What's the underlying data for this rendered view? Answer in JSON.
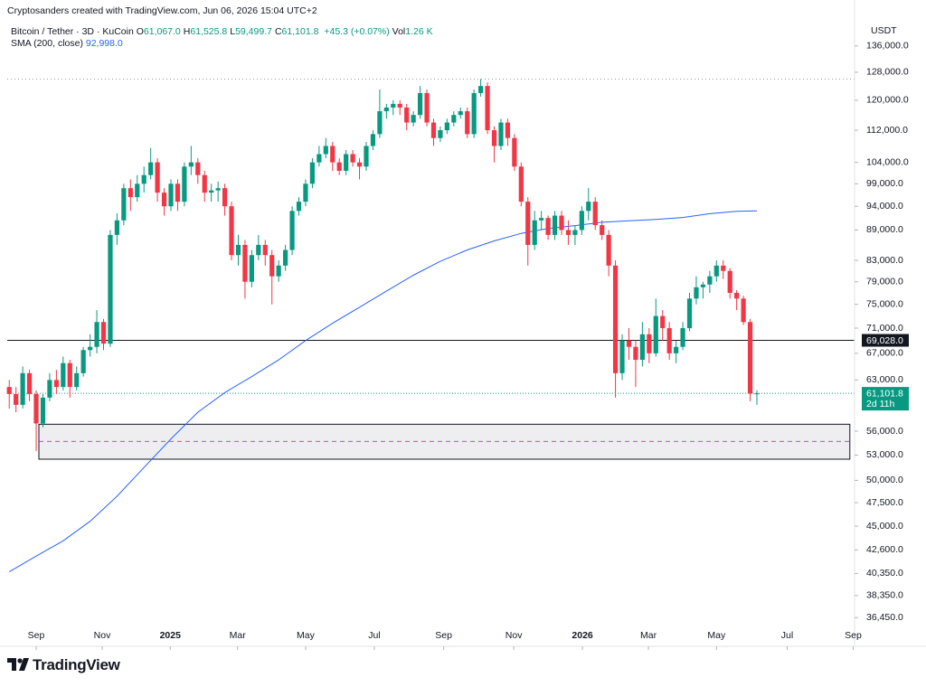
{
  "chart_data": {
    "type": "candlestick",
    "log_scale": true,
    "header": "Cryptosanders created with TradingView.com, Jun 06, 2026 15:04 UTC+2",
    "symbol": "Bitcoin / Tether · 3D · KuCoin",
    "fields": [
      {
        "key": "O",
        "value": "61,067.0"
      },
      {
        "key": "H",
        "value": "61,525.8"
      },
      {
        "key": "L",
        "value": "59,499.7"
      },
      {
        "key": "C",
        "value": "61,101.8"
      }
    ],
    "change": "+45.3 (+0.07%)",
    "volume": {
      "key": "Vol",
      "value": "1.26 K"
    },
    "currency": "USDT",
    "brand": "TradingView",
    "up_color": "#089981",
    "down_color": "#f23645",
    "candles": [
      [
        62000,
        63000,
        59000,
        61000
      ],
      [
        61000,
        62000,
        58500,
        59500
      ],
      [
        59500,
        65000,
        59000,
        64000
      ],
      [
        64000,
        64500,
        60000,
        61000
      ],
      [
        61000,
        61500,
        53500,
        57000
      ],
      [
        57000,
        61000,
        56500,
        60500
      ],
      [
        60500,
        64000,
        60000,
        63000
      ],
      [
        63000,
        64500,
        61000,
        62000
      ],
      [
        62000,
        66500,
        61500,
        65500
      ],
      [
        65500,
        66000,
        60500,
        62000
      ],
      [
        62000,
        65000,
        61500,
        64000
      ],
      [
        64000,
        68000,
        63500,
        67500
      ],
      [
        67500,
        70000,
        66500,
        68000
      ],
      [
        68000,
        74000,
        67000,
        72000
      ],
      [
        72000,
        72500,
        67500,
        68500
      ],
      [
        68500,
        89000,
        68000,
        88000
      ],
      [
        88000,
        92500,
        86000,
        91000
      ],
      [
        91000,
        99000,
        90000,
        98000
      ],
      [
        98000,
        100000,
        93000,
        96000
      ],
      [
        96000,
        101000,
        95000,
        99000
      ],
      [
        99000,
        103000,
        97000,
        101000
      ],
      [
        101000,
        107500,
        100000,
        104000
      ],
      [
        104000,
        105000,
        95000,
        97000
      ],
      [
        97000,
        98000,
        92000,
        94000
      ],
      [
        94000,
        100000,
        93000,
        99000
      ],
      [
        99000,
        100000,
        93000,
        95000
      ],
      [
        95000,
        104000,
        94000,
        103000
      ],
      [
        103000,
        108000,
        101000,
        104000
      ],
      [
        104000,
        105000,
        99000,
        101000
      ],
      [
        101000,
        102000,
        95000,
        97000
      ],
      [
        97000,
        99000,
        95000,
        97500
      ],
      [
        97500,
        99500,
        95000,
        98000
      ],
      [
        98000,
        99000,
        92000,
        94000
      ],
      [
        94000,
        95000,
        83000,
        84000
      ],
      [
        84000,
        88000,
        82000,
        86000
      ],
      [
        86000,
        87000,
        76000,
        79000
      ],
      [
        79000,
        85000,
        78000,
        84000
      ],
      [
        84000,
        88000,
        83000,
        86000
      ],
      [
        86000,
        87000,
        82000,
        84000
      ],
      [
        84000,
        85000,
        75000,
        80000
      ],
      [
        80000,
        83000,
        79000,
        82000
      ],
      [
        82000,
        86000,
        81000,
        85000
      ],
      [
        85000,
        94000,
        84000,
        93000
      ],
      [
        93000,
        96000,
        92000,
        95000
      ],
      [
        95000,
        100000,
        94000,
        99000
      ],
      [
        99000,
        105000,
        98000,
        104000
      ],
      [
        104000,
        108000,
        103000,
        106000
      ],
      [
        106000,
        110000,
        105000,
        108000
      ],
      [
        108000,
        109000,
        102000,
        104000
      ],
      [
        104000,
        105000,
        101000,
        102000
      ],
      [
        102000,
        107000,
        101000,
        106000
      ],
      [
        106000,
        107000,
        103000,
        104000
      ],
      [
        104000,
        105000,
        100000,
        103000
      ],
      [
        103000,
        109000,
        102000,
        108000
      ],
      [
        108000,
        112000,
        107000,
        111000
      ],
      [
        111000,
        123000,
        110000,
        117000
      ],
      [
        117000,
        119000,
        115000,
        118000
      ],
      [
        118000,
        120000,
        116000,
        119000
      ],
      [
        119000,
        120000,
        116000,
        118000
      ],
      [
        118000,
        119000,
        112000,
        114000
      ],
      [
        114000,
        117000,
        113000,
        116000
      ],
      [
        116000,
        124000,
        115000,
        122000
      ],
      [
        122000,
        123000,
        113000,
        114000
      ],
      [
        114000,
        115000,
        108000,
        110000
      ],
      [
        110000,
        113000,
        109000,
        112000
      ],
      [
        112000,
        115000,
        111000,
        114000
      ],
      [
        114000,
        117000,
        113000,
        116000
      ],
      [
        116000,
        118000,
        115000,
        117000
      ],
      [
        117000,
        118000,
        110000,
        111000
      ],
      [
        111000,
        123000,
        110000,
        122000
      ],
      [
        122000,
        126000,
        121000,
        124000
      ],
      [
        124000,
        125000,
        111000,
        112000
      ],
      [
        112000,
        113000,
        104000,
        108000
      ],
      [
        108000,
        115000,
        107000,
        114000
      ],
      [
        114000,
        115000,
        108000,
        110000
      ],
      [
        110000,
        111000,
        102000,
        103000
      ],
      [
        103000,
        104000,
        94000,
        95000
      ],
      [
        95000,
        96000,
        82000,
        86000
      ],
      [
        86000,
        93000,
        85000,
        91000
      ],
      [
        91000,
        93000,
        89000,
        91500
      ],
      [
        91500,
        92000,
        87000,
        88000
      ],
      [
        88000,
        93000,
        87000,
        92000
      ],
      [
        92000,
        93000,
        88000,
        89000
      ],
      [
        89000,
        91000,
        86000,
        88000
      ],
      [
        88000,
        90000,
        86000,
        89000
      ],
      [
        89000,
        94000,
        88000,
        93000
      ],
      [
        93000,
        98000,
        91000,
        95000
      ],
      [
        95000,
        96000,
        89000,
        90000
      ],
      [
        90000,
        91000,
        87000,
        88000
      ],
      [
        88000,
        89000,
        80000,
        82000
      ],
      [
        82000,
        83000,
        60500,
        64000
      ],
      [
        64000,
        70000,
        63000,
        69000
      ],
      [
        69000,
        71000,
        66000,
        68000
      ],
      [
        68000,
        69000,
        62000,
        66000
      ],
      [
        66000,
        72000,
        65000,
        70000
      ],
      [
        70000,
        71000,
        65500,
        67000
      ],
      [
        67000,
        76000,
        66500,
        73000
      ],
      [
        73000,
        74000,
        69000,
        71000
      ],
      [
        71000,
        72000,
        66000,
        67000
      ],
      [
        67000,
        69000,
        65500,
        68000
      ],
      [
        68000,
        72000,
        67500,
        71000
      ],
      [
        71000,
        77000,
        70500,
        76000
      ],
      [
        76000,
        80000,
        75000,
        78000
      ],
      [
        78000,
        79000,
        76000,
        78500
      ],
      [
        78500,
        81000,
        77000,
        80000
      ],
      [
        80000,
        83000,
        79000,
        82000
      ],
      [
        82000,
        83000,
        79500,
        81000
      ],
      [
        81000,
        81500,
        76000,
        77000
      ],
      [
        77000,
        77500,
        74000,
        76000
      ],
      [
        76000,
        76500,
        71500,
        72000
      ],
      [
        72000,
        72500,
        60000,
        61067
      ],
      [
        61067,
        61525.8,
        59499.7,
        61101.8
      ]
    ],
    "sma": {
      "name": "SMA (200, close)",
      "label": "92,998.0",
      "color": "#2962ff",
      "x": [
        0,
        4,
        8,
        12,
        16,
        20,
        24,
        28,
        32,
        36,
        40,
        44,
        48,
        52,
        56,
        60,
        64,
        68,
        72,
        76,
        80,
        84,
        88,
        92,
        96,
        100,
        104,
        108,
        111
      ],
      "values": [
        40500,
        42000,
        43500,
        45500,
        48200,
        51500,
        55000,
        58500,
        61200,
        63500,
        66000,
        69000,
        71800,
        74500,
        77300,
        80200,
        82800,
        85000,
        86800,
        88300,
        89300,
        89900,
        90600,
        90900,
        91200,
        91600,
        92400,
        92900,
        92998
      ]
    },
    "hline": {
      "value": 69028,
      "label": "69,028.0",
      "color": "#131722"
    },
    "ath_line": 126000,
    "last": {
      "value": 61101.8,
      "label": "61,101.8",
      "countdown": "2d 11h",
      "color": "#089981"
    },
    "zone": {
      "x": [
        4.4,
        124.8
      ],
      "y": [
        52500,
        56900
      ],
      "mid": 54700,
      "mid_color": "#9c27b0"
    },
    "xlim": [
      -0.3,
      125.5
    ],
    "ylim": [
      35200,
      145000
    ],
    "xticks": [
      {
        "value": 4,
        "label": "Sep"
      },
      {
        "value": 13.8,
        "label": "Nov"
      },
      {
        "value": 23.9,
        "label": "2025"
      },
      {
        "value": 33.9,
        "label": "Mar"
      },
      {
        "value": 44,
        "label": "May"
      },
      {
        "value": 54.2,
        "label": "Jul"
      },
      {
        "value": 64.5,
        "label": "Sep"
      },
      {
        "value": 74.9,
        "label": "Nov"
      },
      {
        "value": 85.1,
        "label": "2026"
      },
      {
        "value": 94.9,
        "label": "Mar"
      },
      {
        "value": 105,
        "label": "May"
      },
      {
        "value": 115.5,
        "label": "Jul"
      },
      {
        "value": 125.3,
        "label": "Sep"
      }
    ],
    "yticks": [
      {
        "value": 136000,
        "label": "136,000.0"
      },
      {
        "value": 128000,
        "label": "128,000.0"
      },
      {
        "value": 120000,
        "label": "120,000.0"
      },
      {
        "value": 112000,
        "label": "112,000.0"
      },
      {
        "value": 104000,
        "label": "104,000.0"
      },
      {
        "value": 99000,
        "label": "99,000.0"
      },
      {
        "value": 94000,
        "label": "94,000.0"
      },
      {
        "value": 89000,
        "label": "89,000.0"
      },
      {
        "value": 83000,
        "label": "83,000.0"
      },
      {
        "value": 79000,
        "label": "79,000.0"
      },
      {
        "value": 75000,
        "label": "75,000.0"
      },
      {
        "value": 71000,
        "label": "71,000.0"
      },
      {
        "value": 67000,
        "label": "67,000.0"
      },
      {
        "value": 63000,
        "label": "63,000.0"
      },
      {
        "value": 56000,
        "label": "56,000.0"
      },
      {
        "value": 53000,
        "label": "53,000.0"
      },
      {
        "value": 50000,
        "label": "50,000.0"
      },
      {
        "value": 47500,
        "label": "47,500.0"
      },
      {
        "value": 45000,
        "label": "45,000.0"
      },
      {
        "value": 42600,
        "label": "42,600.0"
      },
      {
        "value": 40350,
        "label": "40,350.0"
      },
      {
        "value": 38350,
        "label": "38,350.0"
      },
      {
        "value": 36450,
        "label": "36,450.0"
      }
    ]
  }
}
